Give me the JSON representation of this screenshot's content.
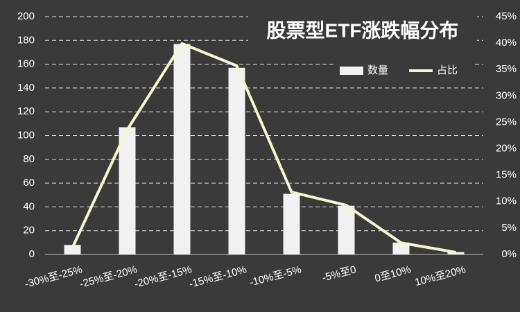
{
  "chart_data": {
    "type": "bar-line",
    "title": "股票型ETF涨跌幅分布",
    "categories": [
      "-30%至-25%",
      "-25%至-20%",
      "-20%至-15%",
      "-15%至-10%",
      "-10%至-5%",
      "-5%至0",
      "0至10%",
      "10%至20%"
    ],
    "series": [
      {
        "name": "数量",
        "type": "bar",
        "color": "#f2f2f2",
        "values": [
          8,
          107,
          177,
          157,
          51,
          41,
          10,
          2
        ]
      },
      {
        "name": "占比",
        "type": "line",
        "axis": "y2",
        "color": "#f7f7d0",
        "values": [
          1.3,
          23.6,
          39.9,
          35.7,
          11.8,
          9.3,
          2.2,
          0.4
        ]
      }
    ],
    "ylim": [
      0,
      200
    ],
    "yticks": [
      0,
      20,
      40,
      60,
      80,
      100,
      120,
      140,
      160,
      180,
      200
    ],
    "y2lim": [
      0,
      45
    ],
    "y2ticks": [
      {
        "value": 0,
        "label": "0%"
      },
      {
        "value": 5,
        "label": "5%"
      },
      {
        "value": 10,
        "label": "10%"
      },
      {
        "value": 15,
        "label": "15%"
      },
      {
        "value": 20,
        "label": "20%"
      },
      {
        "value": 25,
        "label": "25%"
      },
      {
        "value": 30,
        "label": "30%"
      },
      {
        "value": 35,
        "label": "35%"
      },
      {
        "value": 40,
        "label": "40%"
      },
      {
        "value": 45,
        "label": "45%"
      }
    ],
    "grid": true
  }
}
